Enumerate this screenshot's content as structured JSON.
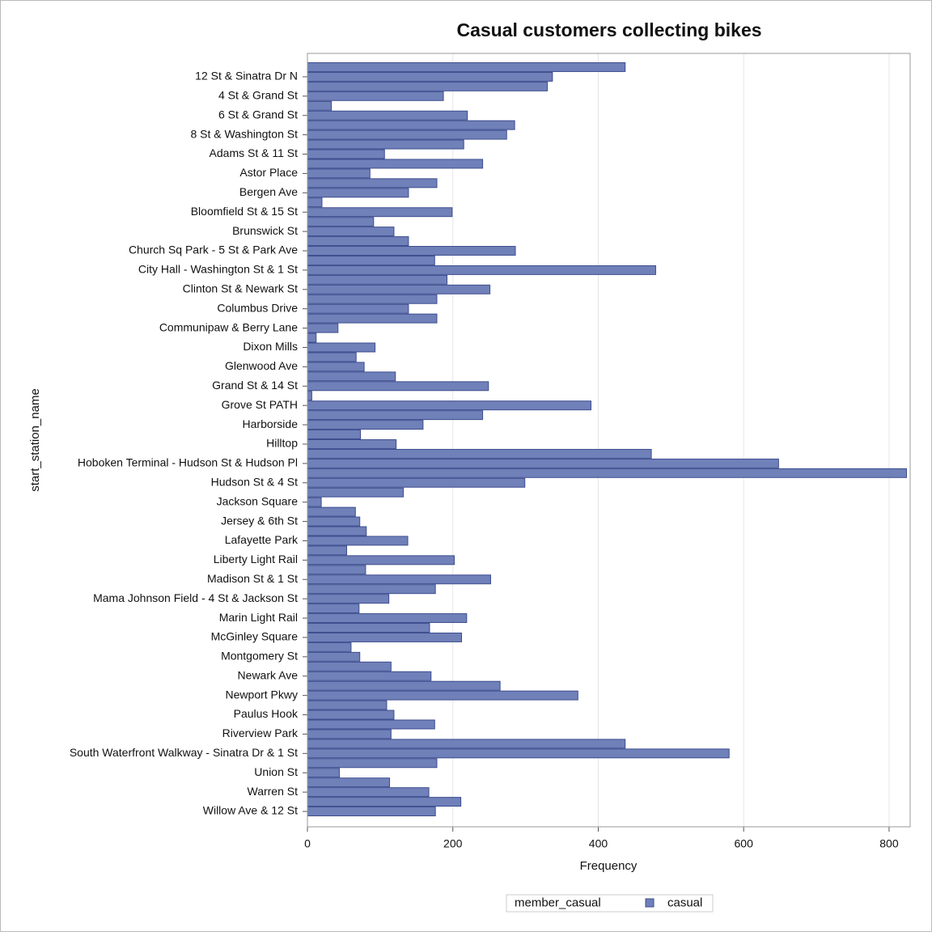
{
  "chart_data": {
    "type": "barh",
    "title": "Casual customers collecting bikes",
    "x_label": "Frequency",
    "y_label": "start_station_name",
    "legend_title": "member_casual",
    "categories": [
      null,
      "12 St & Sinatra Dr N",
      null,
      "4 St & Grand St",
      null,
      "6 St & Grand St",
      null,
      "8 St & Washington St",
      null,
      "Adams St & 11 St",
      null,
      "Astor Place",
      null,
      "Bergen Ave",
      null,
      "Bloomfield St & 15 St",
      null,
      "Brunswick St",
      null,
      "Church Sq Park - 5 St & Park Ave",
      null,
      "City Hall - Washington St & 1 St",
      null,
      "Clinton St & Newark St",
      null,
      "Columbus Drive",
      null,
      "Communipaw & Berry Lane",
      null,
      "Dixon Mills",
      null,
      "Glenwood Ave",
      null,
      "Grand St & 14 St",
      null,
      "Grove St PATH",
      null,
      "Harborside",
      null,
      "Hilltop",
      null,
      "Hoboken Terminal - Hudson St & Hudson Pl",
      null,
      "Hudson St & 4 St",
      null,
      "Jackson Square",
      null,
      "Jersey & 6th St",
      null,
      "Lafayette Park",
      null,
      "Liberty Light Rail",
      null,
      "Madison St & 1 St",
      null,
      "Mama Johnson Field - 4 St & Jackson St",
      null,
      "Marin Light Rail",
      null,
      "McGinley Square",
      null,
      "Montgomery St",
      null,
      "Newark Ave",
      null,
      "Newport Pkwy",
      null,
      "Paulus Hook",
      null,
      "Riverview Park",
      null,
      "South Waterfront Walkway - Sinatra Dr & 1 St",
      null,
      "Union St",
      null,
      "Warren St",
      null,
      "Willow Ave & 12 St"
    ],
    "series": [
      {
        "name": "casual",
        "color": "#7080b8",
        "values": [
          437,
          337,
          330,
          187,
          33,
          220,
          285,
          274,
          215,
          106,
          241,
          86,
          178,
          139,
          20,
          199,
          91,
          119,
          139,
          286,
          175,
          479,
          192,
          251,
          178,
          139,
          178,
          42,
          12,
          93,
          67,
          78,
          121,
          249,
          6,
          390,
          241,
          159,
          73,
          122,
          473,
          648,
          824,
          299,
          132,
          19,
          66,
          72,
          81,
          138,
          54,
          202,
          80,
          252,
          176,
          112,
          71,
          219,
          168,
          212,
          60,
          72,
          115,
          170,
          265,
          372,
          109,
          119,
          175,
          115,
          437,
          580,
          178,
          44,
          113,
          167,
          211,
          176
        ]
      }
    ],
    "xlim": [
      0,
      829
    ],
    "xticks": [
      0,
      200,
      400,
      600,
      800
    ],
    "grid": true
  }
}
